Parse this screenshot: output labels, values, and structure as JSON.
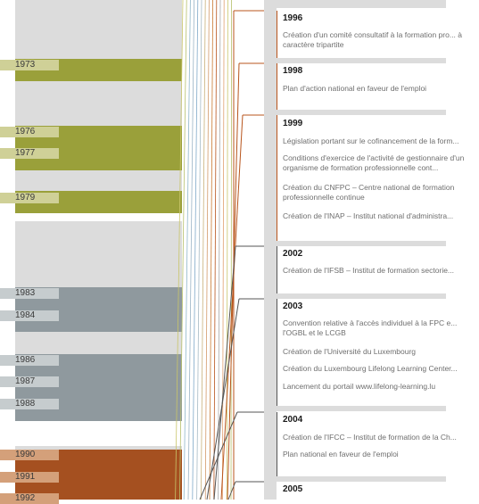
{
  "colors": {
    "panel_bg": "#dcdcdc",
    "olive": "#9aa03a",
    "olive_light": "#cfd097",
    "steel": "#8f999e",
    "steel_light": "#c6ccce",
    "rust": "#a55020",
    "rust_light": "#d4a07a",
    "connector_rust": "#b8541c",
    "connector_dark": "#555555"
  },
  "timeline": {
    "years": [
      {
        "label": "1973",
        "group": "olive"
      },
      {
        "label": "1976",
        "group": "olive"
      },
      {
        "label": "1977",
        "group": "olive"
      },
      {
        "label": "1979",
        "group": "olive"
      },
      {
        "label": "1983",
        "group": "steel"
      },
      {
        "label": "1984",
        "group": "steel"
      },
      {
        "label": "1986",
        "group": "steel"
      },
      {
        "label": "1987",
        "group": "steel"
      },
      {
        "label": "1988",
        "group": "steel"
      },
      {
        "label": "1990",
        "group": "rust"
      },
      {
        "label": "1991",
        "group": "rust"
      },
      {
        "label": "1992",
        "group": "rust"
      }
    ]
  },
  "entries": [
    {
      "year": "1996",
      "items": [
        "Création d'un comité consultatif à la formation pro... à caractère tripartite"
      ]
    },
    {
      "year": "1998",
      "items": [
        "Plan d'action national en faveur de l'emploi"
      ]
    },
    {
      "year": "1999",
      "items": [
        "Législation portant sur le cofinancement de la form...",
        "Conditions d'exercice de l'activité de gestionnaire d'un organisme de formation professionnelle cont...",
        "Création du CNFPC – Centre national de formation professionnelle continue",
        "Création de l'INAP – Institut national d'administra..."
      ]
    },
    {
      "year": "2002",
      "items": [
        "Création de l'IFSB – Institut de formation sectorie..."
      ]
    },
    {
      "year": "2003",
      "items": [
        "Convention relative à l'accès individuel à la FPC e... l'OGBL et le LCGB",
        "Création de l'Université du Luxembourg",
        "Création du Luxembourg Lifelong Learning Center...",
        "Lancement du portail www.lifelong-learning.lu"
      ]
    },
    {
      "year": "2004",
      "items": [
        "Création de l'IFCC – Institut de formation de la Ch...",
        "Plan national en faveur de l'emploi"
      ]
    },
    {
      "year": "2005",
      "items": []
    }
  ]
}
